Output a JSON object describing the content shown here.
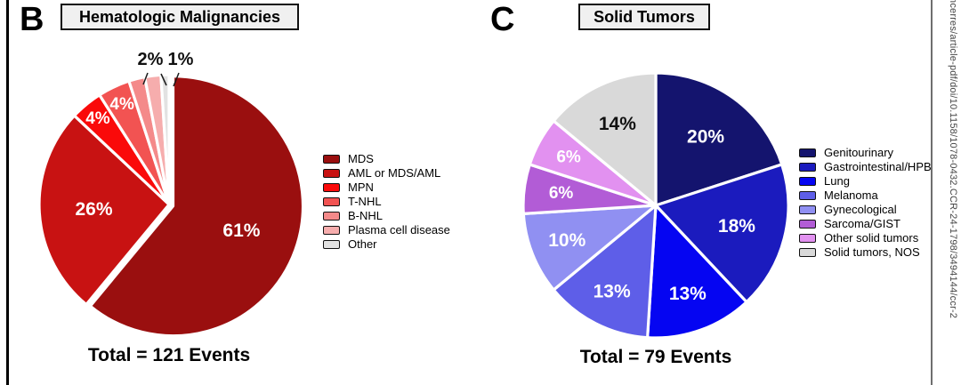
{
  "watermark": "ncerres/article-pdf/doi/10.1158/1078-0432.CCR-24-1798/3494144/ccr-2",
  "chart_data": [
    {
      "type": "pie",
      "panel_letter": "B",
      "title": "Hematologic Malignancies",
      "total_label": "Total = 121 Events",
      "total_events": 121,
      "start_angle": "12-oclock",
      "direction": "clockwise",
      "legend_position": "right",
      "slices": [
        {
          "label": "MDS",
          "pct": 61,
          "display": "61%",
          "color": "#9A0F0F",
          "label_placement": "inside",
          "text_color": "#ffffff"
        },
        {
          "label": "AML or MDS/AML",
          "pct": 26,
          "display": "26%",
          "color": "#C81212",
          "label_placement": "inside",
          "text_color": "#ffffff"
        },
        {
          "label": "MPN",
          "pct": 4,
          "display": "4%",
          "color": "#FA0A0A",
          "label_placement": "inside",
          "text_color": "#ffffff"
        },
        {
          "label": "T-NHL",
          "pct": 4,
          "display": "4%",
          "color": "#F25352",
          "label_placement": "inside",
          "text_color": "#ffffff"
        },
        {
          "label": "B-NHL",
          "pct": 2,
          "display": "2%",
          "color": "#F48A8A",
          "label_placement": "outside",
          "text_color": "#111111"
        },
        {
          "label": "Plasma cell disease",
          "pct": 2,
          "display": "",
          "color": "#F6ADAD",
          "label_placement": "outside",
          "text_color": "#111111"
        },
        {
          "label": "Other",
          "pct": 1,
          "display": "1%",
          "color": "#E2E2E2",
          "label_placement": "outside",
          "text_color": "#111111"
        }
      ]
    },
    {
      "type": "pie",
      "panel_letter": "C",
      "title": "Solid Tumors",
      "total_label": "Total = 79 Events",
      "total_events": 79,
      "start_angle": "12-oclock",
      "direction": "clockwise",
      "legend_position": "right",
      "slices": [
        {
          "label": "Genitourinary",
          "pct": 20,
          "display": "20%",
          "color": "#14146E",
          "label_placement": "inside",
          "text_color": "#ffffff"
        },
        {
          "label": "Gastrointestinal/HPB",
          "pct": 18,
          "display": "18%",
          "color": "#1B1BBE",
          "label_placement": "inside",
          "text_color": "#ffffff"
        },
        {
          "label": "Lung",
          "pct": 13,
          "display": "13%",
          "color": "#0505F2",
          "label_placement": "inside",
          "text_color": "#ffffff"
        },
        {
          "label": "Melanoma",
          "pct": 13,
          "display": "13%",
          "color": "#5E5EE8",
          "label_placement": "inside",
          "text_color": "#ffffff"
        },
        {
          "label": "Gynecological",
          "pct": 10,
          "display": "10%",
          "color": "#9090F2",
          "label_placement": "inside",
          "text_color": "#ffffff"
        },
        {
          "label": "Sarcoma/GIST",
          "pct": 6,
          "display": "6%",
          "color": "#B25CD6",
          "label_placement": "inside",
          "text_color": "#ffffff"
        },
        {
          "label": "Other solid tumors",
          "pct": 6,
          "display": "6%",
          "color": "#E291F0",
          "label_placement": "inside",
          "text_color": "#ffffff"
        },
        {
          "label": "Solid tumors, NOS",
          "pct": 14,
          "display": "14%",
          "color": "#D9D9D9",
          "label_placement": "inside",
          "text_color": "#111111"
        }
      ]
    }
  ]
}
